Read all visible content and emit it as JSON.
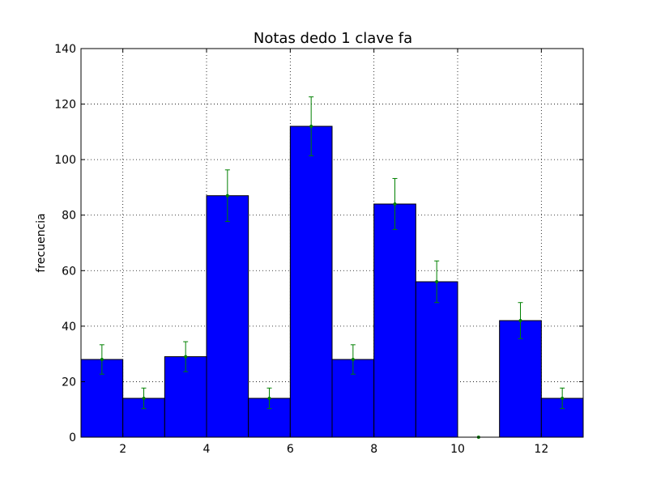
{
  "chart_data": {
    "type": "bar",
    "title": "Notas dedo 1 clave fa",
    "xlabel": "",
    "ylabel": "frecuencia",
    "xlim": [
      1,
      13
    ],
    "ylim": [
      0,
      140
    ],
    "x_ticks": [
      2,
      4,
      6,
      8,
      10,
      12
    ],
    "y_ticks": [
      0,
      20,
      40,
      60,
      80,
      100,
      120,
      140
    ],
    "grid": true,
    "bins": [
      {
        "start": 1,
        "end": 2,
        "value": 28,
        "err": 5.3
      },
      {
        "start": 2,
        "end": 3,
        "value": 14,
        "err": 3.7
      },
      {
        "start": 3,
        "end": 4,
        "value": 29,
        "err": 5.4
      },
      {
        "start": 4,
        "end": 5,
        "value": 87,
        "err": 9.3
      },
      {
        "start": 5,
        "end": 6,
        "value": 14,
        "err": 3.7
      },
      {
        "start": 6,
        "end": 7,
        "value": 112,
        "err": 10.6
      },
      {
        "start": 7,
        "end": 8,
        "value": 28,
        "err": 5.3
      },
      {
        "start": 8,
        "end": 9,
        "value": 84,
        "err": 9.2
      },
      {
        "start": 9,
        "end": 10,
        "value": 56,
        "err": 7.5
      },
      {
        "start": 10,
        "end": 11,
        "value": 0,
        "err": 0
      },
      {
        "start": 11,
        "end": 12,
        "value": 42,
        "err": 6.5
      },
      {
        "start": 12,
        "end": 13,
        "value": 14,
        "err": 3.7
      }
    ],
    "colors": {
      "bar_fill": "#0000ff",
      "bar_edge": "#000000",
      "errorbar": "#008000",
      "grid": "#000000"
    }
  }
}
